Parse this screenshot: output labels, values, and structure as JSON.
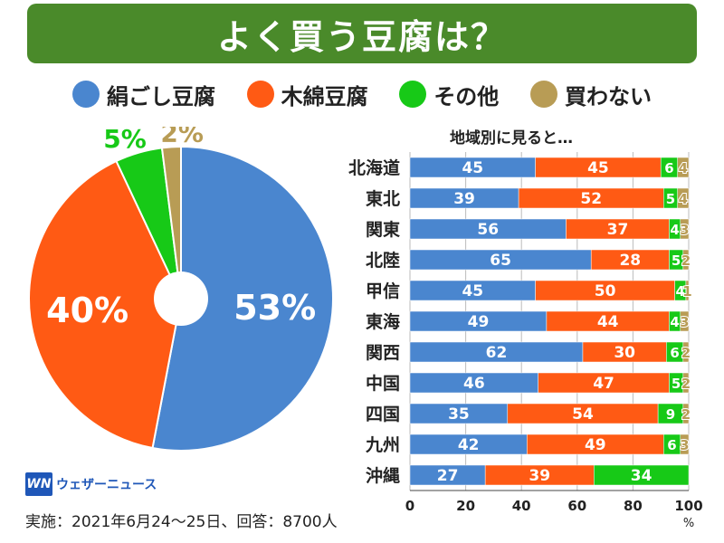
{
  "title": "よく買う豆腐は？",
  "colors": {
    "kinugoshi": "#4a86cf",
    "momen": "#ff5a14",
    "other": "#17c917",
    "none": "#b89c55",
    "banner": "#4a8a2a"
  },
  "legend": [
    {
      "label": "絹ごし豆腐",
      "color": "#4a86cf"
    },
    {
      "label": "木綿豆腐",
      "color": "#ff5a14"
    },
    {
      "label": "その他",
      "color": "#17c917"
    },
    {
      "label": "買わない",
      "color": "#b89c55"
    }
  ],
  "chart_data": [
    {
      "type": "pie",
      "title": "よく買う豆腐は？",
      "categories": [
        "絹ごし豆腐",
        "木綿豆腐",
        "その他",
        "買わない"
      ],
      "values": [
        53,
        40,
        5,
        2
      ],
      "labels": [
        "53%",
        "40%",
        "5%",
        "2%"
      ],
      "colors": [
        "#4a86cf",
        "#ff5a14",
        "#17c917",
        "#b89c55"
      ]
    },
    {
      "type": "bar",
      "orientation": "horizontal",
      "stacked": true,
      "title": "地域別に見ると…",
      "categories": [
        "北海道",
        "東北",
        "関東",
        "北陸",
        "甲信",
        "東海",
        "関西",
        "中国",
        "四国",
        "九州",
        "沖縄"
      ],
      "series": [
        {
          "name": "絹ごし豆腐",
          "color": "#4a86cf",
          "values": [
            45,
            39,
            56,
            65,
            45,
            49,
            62,
            46,
            35,
            42,
            27
          ]
        },
        {
          "name": "木綿豆腐",
          "color": "#ff5a14",
          "values": [
            45,
            52,
            37,
            28,
            50,
            44,
            30,
            47,
            54,
            49,
            39
          ]
        },
        {
          "name": "その他",
          "color": "#17c917",
          "values": [
            6,
            5,
            4,
            5,
            4,
            4,
            6,
            5,
            9,
            6,
            34
          ]
        },
        {
          "name": "買わない",
          "color": "#b89c55",
          "values": [
            4,
            4,
            3,
            2,
            1,
            3,
            2,
            2,
            2,
            3,
            0
          ]
        }
      ],
      "xlim": [
        0,
        100
      ],
      "xticks": [
        "0",
        "20",
        "40",
        "60",
        "80",
        "100"
      ],
      "xlabel": "%"
    }
  ],
  "footer": {
    "logo_mark": "WN",
    "logo_text": "ウェザーニュース",
    "note": "実施：2021年6月24～25日、回答：8700人"
  }
}
